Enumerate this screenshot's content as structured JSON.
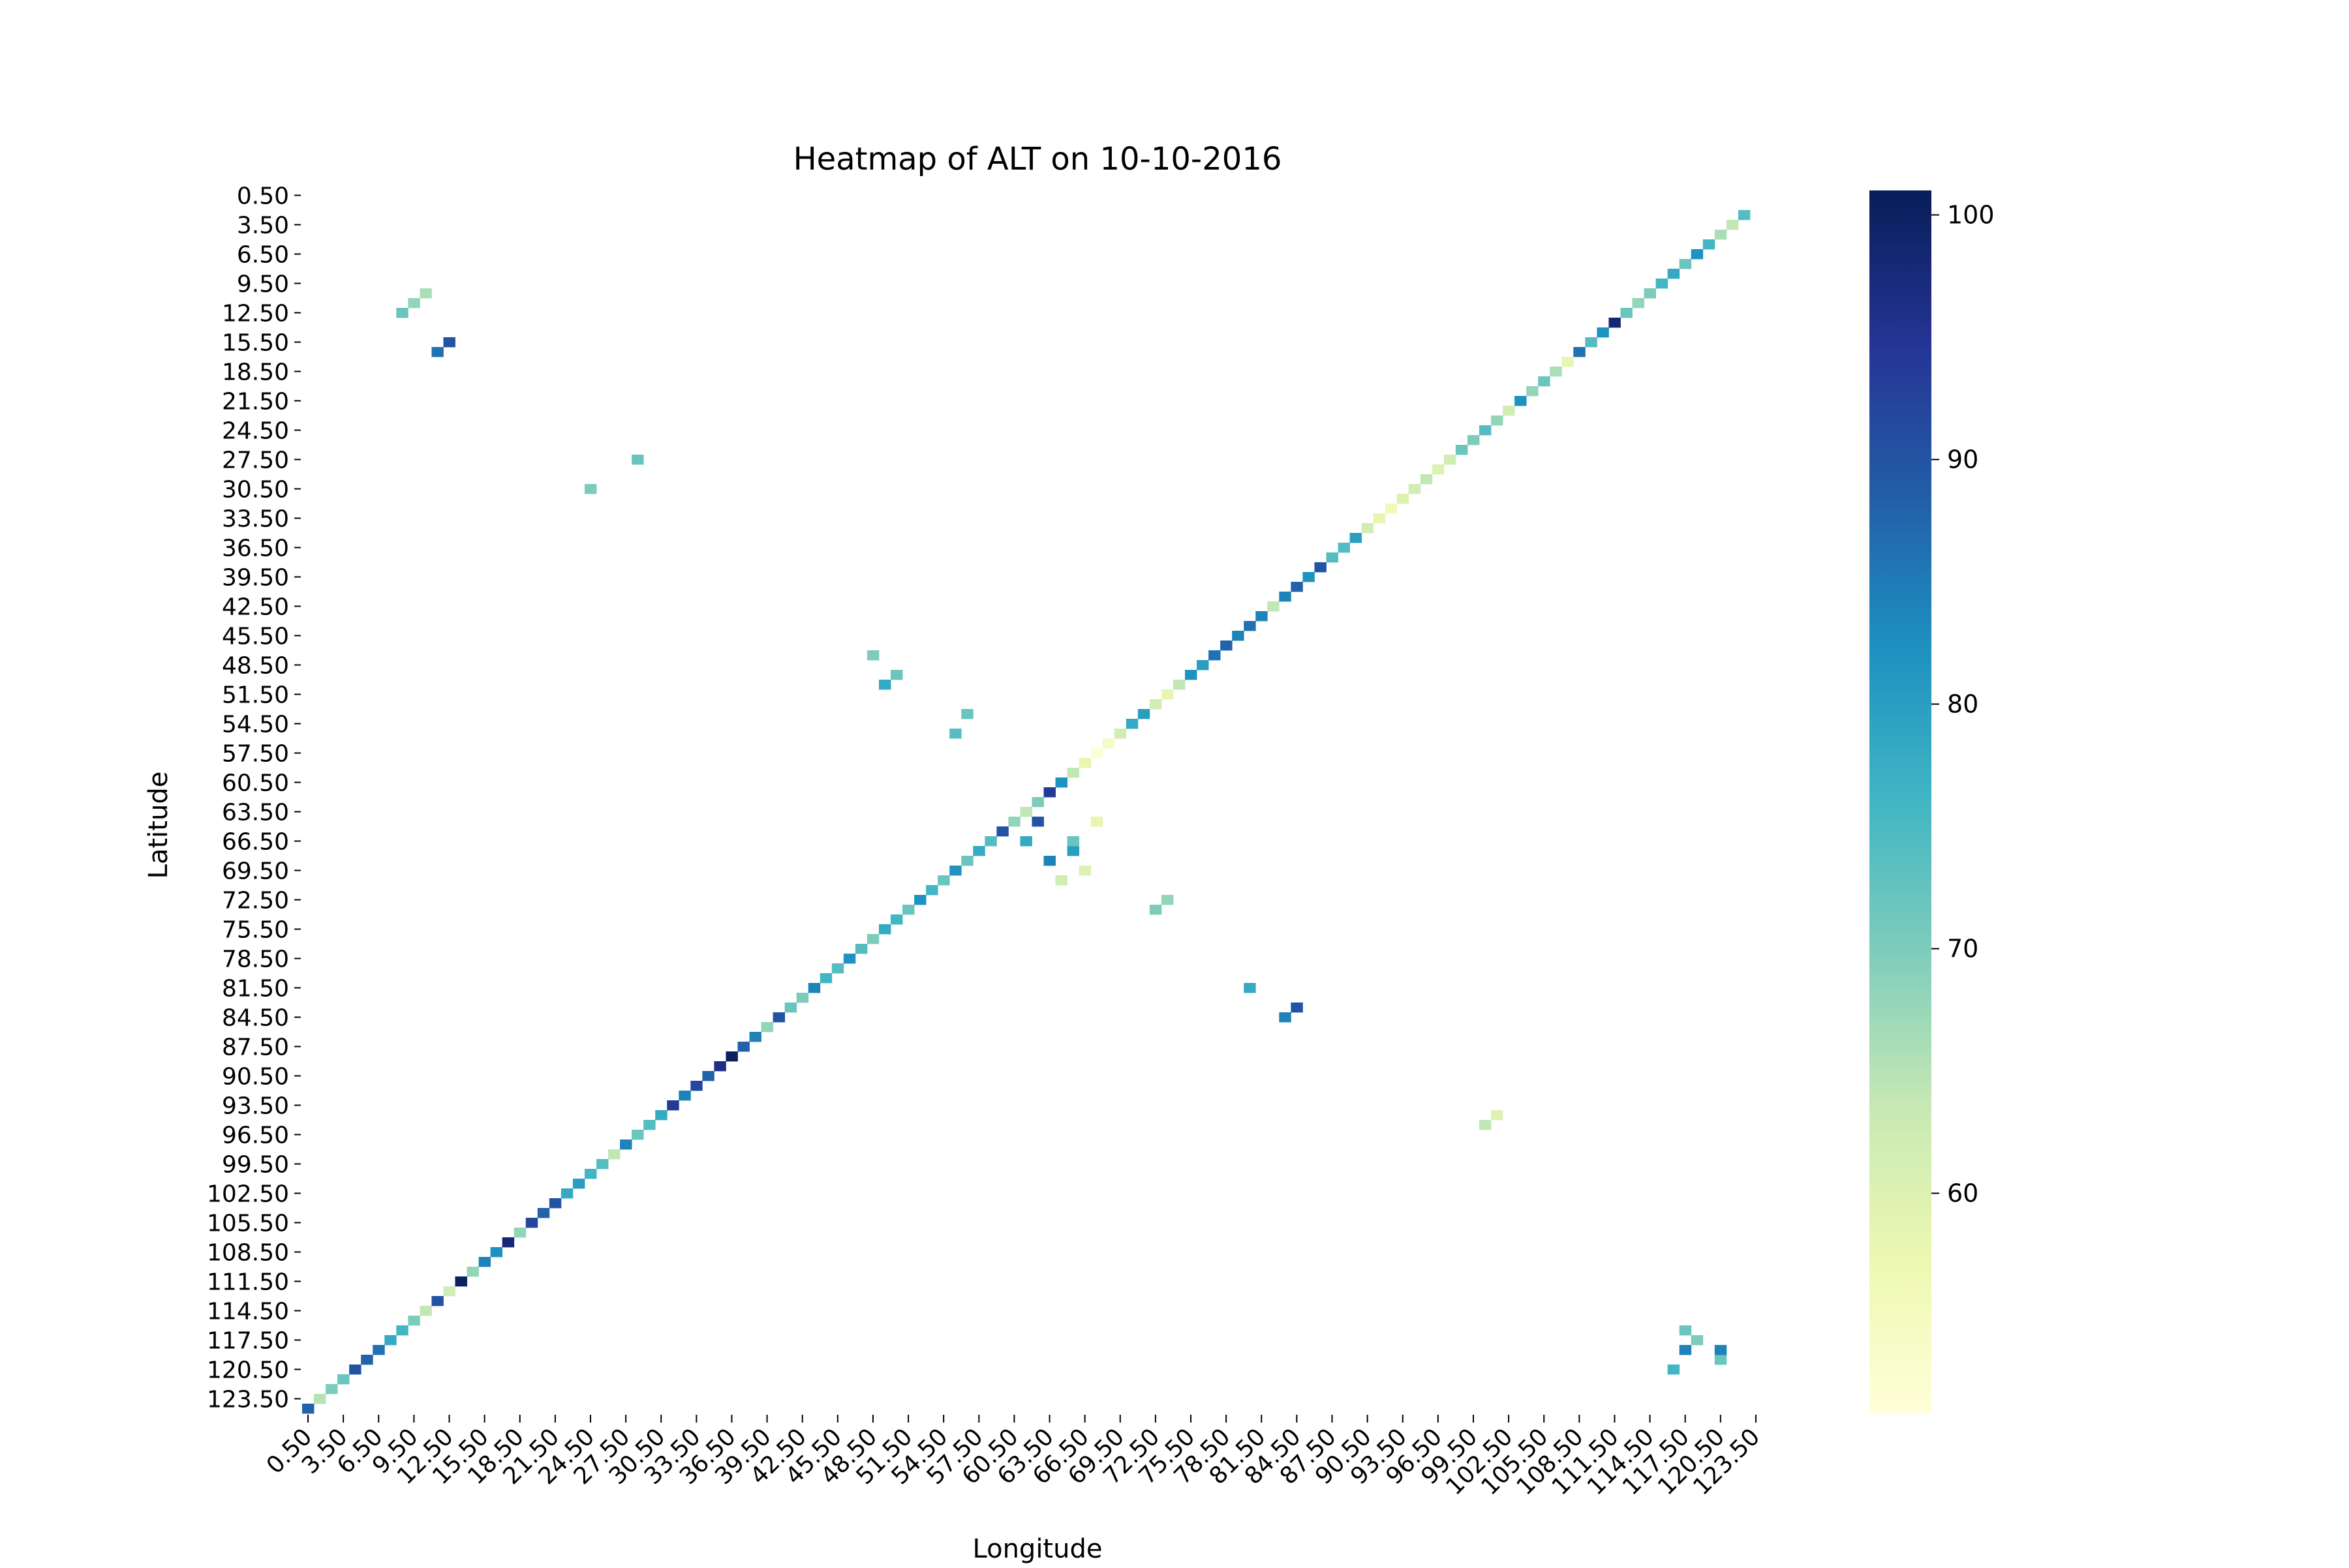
{
  "chart_data": {
    "type": "heatmap",
    "title": "Heatmap of ALT on 10-10-2016",
    "xlabel": "Longitude",
    "ylabel": "Latitude",
    "x_tick_labels": [
      "0.50",
      "3.50",
      "6.50",
      "9.50",
      "12.50",
      "15.50",
      "18.50",
      "21.50",
      "24.50",
      "27.50",
      "30.50",
      "33.50",
      "36.50",
      "39.50",
      "42.50",
      "45.50",
      "48.50",
      "51.50",
      "54.50",
      "57.50",
      "60.50",
      "63.50",
      "66.50",
      "69.50",
      "72.50",
      "75.50",
      "78.50",
      "81.50",
      "84.50",
      "87.50",
      "90.50",
      "93.50",
      "96.50",
      "99.50",
      "102.50",
      "105.50",
      "108.50",
      "111.50",
      "114.50",
      "117.50",
      "120.50",
      "123.50"
    ],
    "y_tick_labels": [
      "0.50",
      "3.50",
      "6.50",
      "9.50",
      "12.50",
      "15.50",
      "18.50",
      "21.50",
      "24.50",
      "27.50",
      "30.50",
      "33.50",
      "36.50",
      "39.50",
      "42.50",
      "45.50",
      "48.50",
      "51.50",
      "54.50",
      "57.50",
      "60.50",
      "63.50",
      "66.50",
      "69.50",
      "72.50",
      "75.50",
      "78.50",
      "81.50",
      "84.50",
      "87.50",
      "90.50",
      "93.50",
      "96.50",
      "99.50",
      "102.50",
      "105.50",
      "108.50",
      "111.50",
      "114.50",
      "117.50",
      "120.50",
      "123.50"
    ],
    "grid_size": 125,
    "colorscale": "YlGnBu",
    "colors": [
      "#ffffd9",
      "#edf8b1",
      "#c7e9b4",
      "#7fcdbb",
      "#41b6c4",
      "#1d91c0",
      "#225ea8",
      "#253494",
      "#081d58"
    ],
    "value_range": [
      51,
      101
    ],
    "colorbar_ticks": [
      60,
      70,
      80,
      90,
      100
    ],
    "cells": [
      [
        0,
        0,
        88
      ],
      [
        1,
        1,
        65
      ],
      [
        2,
        2,
        70
      ],
      [
        3,
        3,
        72
      ],
      [
        4,
        4,
        90
      ],
      [
        5,
        5,
        88
      ],
      [
        6,
        6,
        86
      ],
      [
        7,
        7,
        78
      ],
      [
        8,
        8,
        76
      ],
      [
        9,
        9,
        70
      ],
      [
        10,
        10,
        64
      ],
      [
        11,
        11,
        90
      ],
      [
        12,
        12,
        62
      ],
      [
        13,
        13,
        100
      ],
      [
        14,
        14,
        68
      ],
      [
        15,
        15,
        84
      ],
      [
        16,
        16,
        82
      ],
      [
        17,
        17,
        98
      ],
      [
        18,
        18,
        68
      ],
      [
        19,
        19,
        92
      ],
      [
        20,
        20,
        88
      ],
      [
        21,
        21,
        90
      ],
      [
        22,
        22,
        78
      ],
      [
        23,
        23,
        80
      ],
      [
        24,
        24,
        76
      ],
      [
        25,
        25,
        74
      ],
      [
        26,
        26,
        64
      ],
      [
        27,
        27,
        84
      ],
      [
        28,
        28,
        72
      ],
      [
        29,
        29,
        74
      ],
      [
        30,
        30,
        78
      ],
      [
        31,
        31,
        94
      ],
      [
        32,
        32,
        84
      ],
      [
        33,
        33,
        92
      ],
      [
        34,
        34,
        88
      ],
      [
        35,
        35,
        96
      ],
      [
        36,
        36,
        100
      ],
      [
        37,
        37,
        88
      ],
      [
        38,
        38,
        84
      ],
      [
        39,
        39,
        68
      ],
      [
        40,
        40,
        90
      ],
      [
        41,
        41,
        72
      ],
      [
        42,
        42,
        70
      ],
      [
        43,
        43,
        84
      ],
      [
        44,
        44,
        76
      ],
      [
        45,
        45,
        74
      ],
      [
        46,
        46,
        82
      ],
      [
        47,
        47,
        74
      ],
      [
        48,
        48,
        70
      ],
      [
        49,
        49,
        78
      ],
      [
        50,
        50,
        76
      ],
      [
        51,
        51,
        72
      ],
      [
        52,
        52,
        82
      ],
      [
        53,
        53,
        76
      ],
      [
        54,
        54,
        72
      ],
      [
        55,
        55,
        82
      ],
      [
        56,
        56,
        72
      ],
      [
        57,
        57,
        78
      ],
      [
        58,
        58,
        74
      ],
      [
        59,
        59,
        90
      ],
      [
        60,
        60,
        68
      ],
      [
        61,
        61,
        64
      ],
      [
        62,
        62,
        70
      ],
      [
        63,
        63,
        94
      ],
      [
        64,
        64,
        82
      ],
      [
        65,
        65,
        64
      ],
      [
        66,
        66,
        58
      ],
      [
        67,
        67,
        52
      ],
      [
        68,
        68,
        54
      ],
      [
        69,
        69,
        62
      ],
      [
        70,
        70,
        78
      ],
      [
        71,
        71,
        80
      ],
      [
        72,
        72,
        62
      ],
      [
        73,
        73,
        58
      ],
      [
        74,
        74,
        64
      ],
      [
        75,
        75,
        82
      ],
      [
        76,
        76,
        80
      ],
      [
        77,
        77,
        86
      ],
      [
        78,
        78,
        88
      ],
      [
        79,
        79,
        84
      ],
      [
        80,
        80,
        86
      ],
      [
        81,
        81,
        84
      ],
      [
        82,
        82,
        64
      ],
      [
        83,
        83,
        84
      ],
      [
        84,
        84,
        88
      ],
      [
        85,
        85,
        82
      ],
      [
        86,
        86,
        90
      ],
      [
        87,
        87,
        74
      ],
      [
        88,
        88,
        74
      ],
      [
        89,
        89,
        80
      ],
      [
        90,
        90,
        62
      ],
      [
        91,
        91,
        58
      ],
      [
        92,
        92,
        56
      ],
      [
        93,
        93,
        60
      ],
      [
        94,
        94,
        62
      ],
      [
        95,
        95,
        64
      ],
      [
        96,
        96,
        60
      ],
      [
        97,
        97,
        62
      ],
      [
        98,
        98,
        72
      ],
      [
        99,
        99,
        70
      ],
      [
        100,
        100,
        74
      ],
      [
        101,
        101,
        68
      ],
      [
        102,
        102,
        62
      ],
      [
        103,
        103,
        82
      ],
      [
        104,
        104,
        68
      ],
      [
        105,
        105,
        72
      ],
      [
        106,
        106,
        66
      ],
      [
        107,
        107,
        58
      ],
      [
        108,
        108,
        86
      ],
      [
        109,
        109,
        74
      ],
      [
        110,
        110,
        82
      ],
      [
        111,
        111,
        98
      ],
      [
        112,
        112,
        72
      ],
      [
        113,
        113,
        68
      ],
      [
        114,
        114,
        70
      ],
      [
        115,
        115,
        76
      ],
      [
        116,
        116,
        78
      ],
      [
        117,
        117,
        72
      ],
      [
        118,
        118,
        82
      ],
      [
        119,
        119,
        76
      ],
      [
        120,
        120,
        66
      ],
      [
        121,
        121,
        64
      ],
      [
        122,
        122,
        74
      ],
      [
        116,
        4,
        76
      ],
      [
        117,
        6,
        84
      ],
      [
        120,
        5,
        72
      ],
      [
        118,
        7,
        70
      ],
      [
        120,
        6,
        84
      ],
      [
        117,
        8,
        72
      ],
      [
        63,
        56,
        84
      ],
      [
        65,
        57,
        80
      ],
      [
        64,
        54,
        62
      ],
      [
        66,
        55,
        60
      ],
      [
        65,
        58,
        72
      ],
      [
        67,
        60,
        58
      ],
      [
        62,
        60,
        90
      ],
      [
        61,
        58,
        78
      ],
      [
        83,
        40,
        84
      ],
      [
        84,
        41,
        90
      ],
      [
        80,
        43,
        78
      ],
      [
        55,
        69,
        74
      ],
      [
        56,
        71,
        72
      ],
      [
        49,
        74,
        78
      ],
      [
        50,
        75,
        72
      ],
      [
        48,
        77,
        70
      ],
      [
        12,
        109,
        90
      ],
      [
        11,
        108,
        86
      ],
      [
        8,
        112,
        72
      ],
      [
        9,
        113,
        68
      ],
      [
        10,
        114,
        66
      ],
      [
        72,
        51,
        70
      ],
      [
        73,
        52,
        68
      ],
      [
        100,
        29,
        64
      ],
      [
        101,
        30,
        60
      ],
      [
        24,
        94,
        70
      ],
      [
        28,
        97,
        72
      ]
    ]
  }
}
